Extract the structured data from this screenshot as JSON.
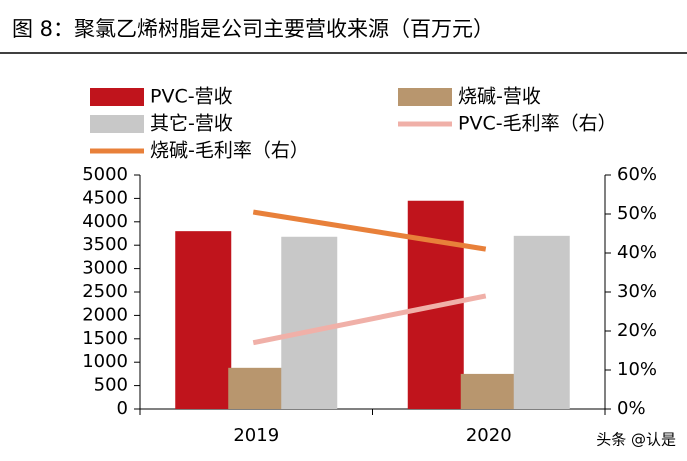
{
  "chart_data": {
    "type": "bar",
    "title": "图 8：聚氯乙烯树脂是公司主要营收来源（百万元）",
    "watermark": "头条 @认是",
    "categories": [
      "2019",
      "2020"
    ],
    "series": [
      {
        "name": "PVC-营收",
        "color": "#c0141c",
        "type": "bar",
        "values": [
          3800,
          4450
        ]
      },
      {
        "name": "烧碱-营收",
        "color": "#b8966e",
        "type": "bar",
        "values": [
          880,
          750
        ]
      },
      {
        "name": "其它-营收",
        "color": "#c8c8c8",
        "type": "bar",
        "values": [
          3680,
          3700
        ]
      },
      {
        "name": "PVC-毛利率（右）",
        "color": "#f0b0a8",
        "type": "line",
        "axis": "y2",
        "values": [
          17,
          29
        ]
      },
      {
        "name": "烧碱-毛利率（右）",
        "color": "#e8803a",
        "type": "line",
        "axis": "y2",
        "values": [
          50.5,
          41
        ]
      }
    ],
    "ylim": [
      0,
      5000
    ],
    "yticks": [
      0,
      500,
      1000,
      1500,
      2000,
      2500,
      3000,
      3500,
      4000,
      4500,
      5000
    ],
    "y2lim": [
      0,
      60
    ],
    "y2ticks": [
      {
        "value": 0,
        "label": "0%"
      },
      {
        "value": 10,
        "label": "10%"
      },
      {
        "value": 20,
        "label": "20%"
      },
      {
        "value": 30,
        "label": "30%"
      },
      {
        "value": 40,
        "label": "40%"
      },
      {
        "value": 50,
        "label": "50%"
      },
      {
        "value": 60,
        "label": "60%"
      }
    ],
    "legend": "top"
  }
}
